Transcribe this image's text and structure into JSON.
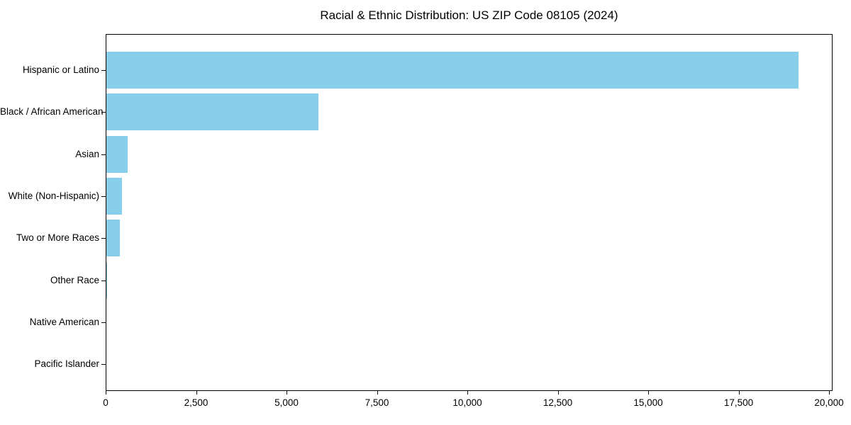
{
  "chart_data": {
    "type": "bar",
    "orientation": "horizontal",
    "title": "Racial & Ethnic Distribution: US ZIP Code 08105 (2024)",
    "categories": [
      "Hispanic or Latino",
      "Black / African American",
      "Asian",
      "White (Non-Hispanic)",
      "Two or More Races",
      "Other Race",
      "Native American",
      "Pacific Islander"
    ],
    "values": [
      19140,
      5860,
      590,
      430,
      365,
      20,
      0,
      0
    ],
    "bar_color": "#87CEEB",
    "xlabel": "",
    "ylabel": "",
    "xlim": [
      0,
      20000
    ],
    "x_ticks": [
      0,
      2500,
      5000,
      7500,
      10000,
      12500,
      15000,
      17500,
      20000
    ],
    "x_tick_labels": [
      "0",
      "2,500",
      "5,000",
      "7,500",
      "10,000",
      "12,500",
      "15,000",
      "17,500",
      "20,000"
    ],
    "grid": false,
    "legend": null,
    "background_color": "#ffffff",
    "text_color": "#000000"
  }
}
